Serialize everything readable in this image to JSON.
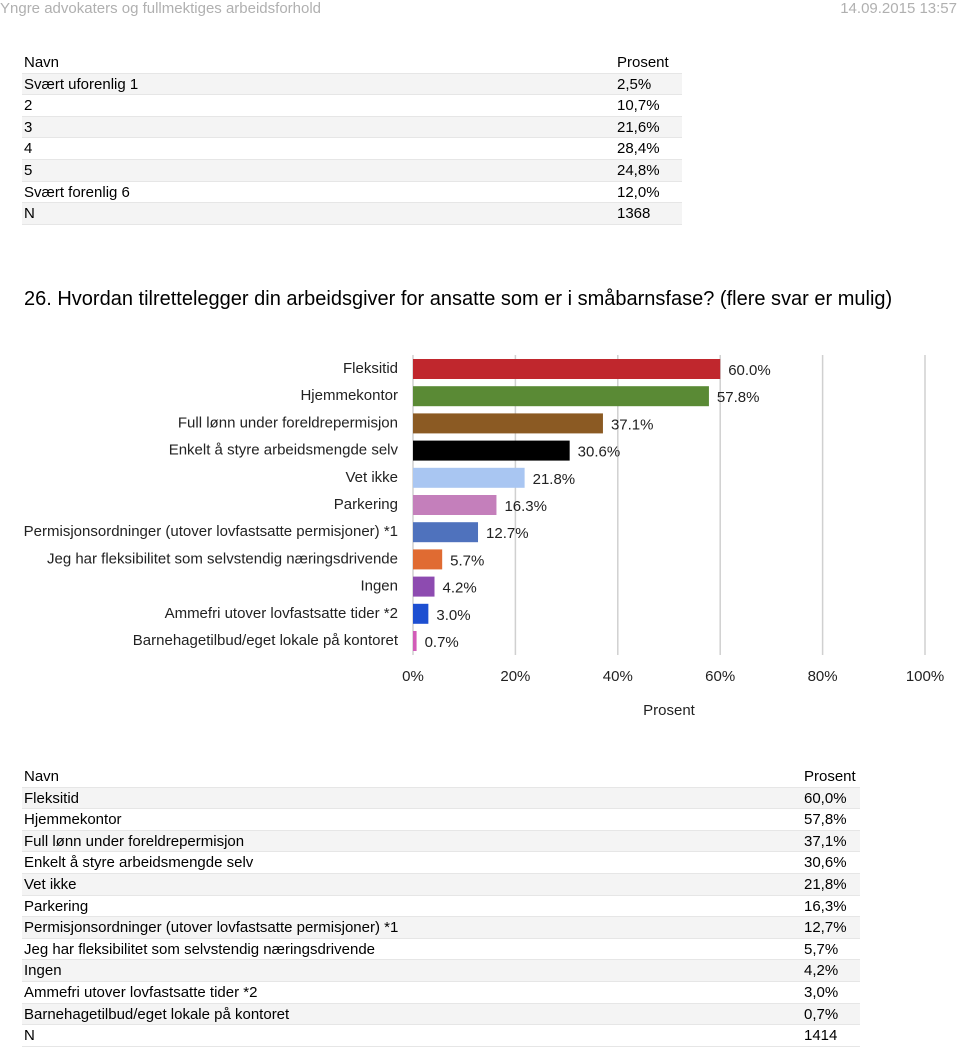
{
  "header": {
    "title": "Yngre advokaters og fullmektiges arbeidsforhold",
    "date": "14.09.2015 13:57"
  },
  "table1": {
    "columns": [
      "Navn",
      "Prosent"
    ],
    "rows": [
      [
        "Svært uforenlig 1",
        "2,5%"
      ],
      [
        "2",
        "10,7%"
      ],
      [
        "3",
        "21,6%"
      ],
      [
        "4",
        "28,4%"
      ],
      [
        "5",
        "24,8%"
      ],
      [
        "Svært forenlig 6",
        "12,0%"
      ],
      [
        "N",
        "1368"
      ]
    ]
  },
  "question": "26. Hvordan tilrettelegger din arbeidsgiver for ansatte som er i småbarnsfase? (flere svar er mulig)",
  "chart_data": {
    "type": "bar",
    "orientation": "horizontal",
    "categories": [
      "Fleksitid",
      "Hjemmekontor",
      "Full lønn under foreldrepermisjon",
      "Enkelt å styre arbeidsmengde selv",
      "Vet ikke",
      "Parkering",
      "Permisjonsordninger (utover lovfastsatte permisjoner) *1",
      "Jeg har fleksibilitet som selvstendig næringsdrivende",
      "Ingen",
      "Ammefri utover lovfastsatte tider *2",
      "Barnehagetilbud/eget lokale på kontoret"
    ],
    "values": [
      60.0,
      57.8,
      37.1,
      30.6,
      21.8,
      16.3,
      12.7,
      5.7,
      4.2,
      3.0,
      0.7
    ],
    "value_labels": [
      "60.0%",
      "57.8%",
      "37.1%",
      "30.6%",
      "21.8%",
      "16.3%",
      "12.7%",
      "5.7%",
      "4.2%",
      "3.0%",
      "0.7%"
    ],
    "colors": [
      "#c0272d",
      "#5a8a35",
      "#8b5a23",
      "#000000",
      "#a9c6f2",
      "#c47fbb",
      "#4f72bd",
      "#e06b32",
      "#8d4bb0",
      "#1d4fd1",
      "#d25cb8"
    ],
    "xlim": [
      0,
      100
    ],
    "xticks": [
      {
        "value": 0,
        "label": "0%"
      },
      {
        "value": 20,
        "label": "20%"
      },
      {
        "value": 40,
        "label": "40%"
      },
      {
        "value": 60,
        "label": "60%"
      },
      {
        "value": 80,
        "label": "80%"
      },
      {
        "value": 100,
        "label": "100%"
      }
    ],
    "xlabel": "Prosent",
    "grid": true
  },
  "table2": {
    "columns": [
      "Navn",
      "Prosent"
    ],
    "rows": [
      [
        "Fleksitid",
        "60,0%"
      ],
      [
        "Hjemmekontor",
        "57,8%"
      ],
      [
        "Full lønn under foreldrepermisjon",
        "37,1%"
      ],
      [
        "Enkelt å styre arbeidsmengde selv",
        "30,6%"
      ],
      [
        "Vet ikke",
        "21,8%"
      ],
      [
        "Parkering",
        "16,3%"
      ],
      [
        "Permisjonsordninger (utover lovfastsatte permisjoner) *1",
        "12,7%"
      ],
      [
        "Jeg har fleksibilitet som selvstendig næringsdrivende",
        "5,7%"
      ],
      [
        "Ingen",
        "4,2%"
      ],
      [
        "Ammefri utover lovfastsatte tider *2",
        "3,0%"
      ],
      [
        "Barnehagetilbud/eget lokale på kontoret",
        "0,7%"
      ],
      [
        "N",
        "1414"
      ]
    ]
  }
}
